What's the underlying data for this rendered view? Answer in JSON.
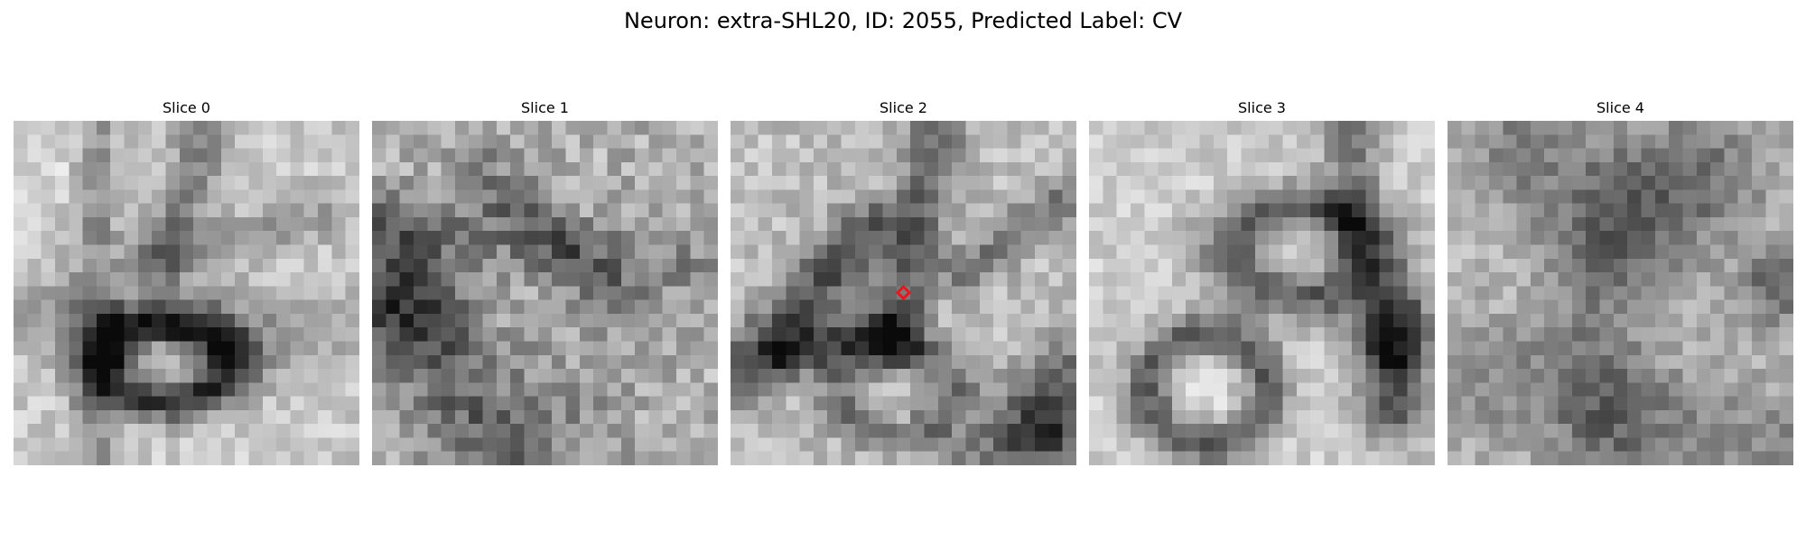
{
  "figure": {
    "title": "Neuron: extra-SHL20, ID: 2055, Predicted Label: CV"
  },
  "panels": [
    {
      "title": "Slice 0",
      "description": "grayscale EM patch with dark ring-shaped vesicle at lower center and dark membrane lines above"
    },
    {
      "title": "Slice 1",
      "description": "noisy grayscale EM patch with diffuse dark diagonal membranes"
    },
    {
      "title": "Slice 2",
      "description": "grayscale EM patch with dark diagonal membranes and a red target marker at center"
    },
    {
      "title": "Slice 3",
      "description": "grayscale EM patch with a ring-shaped vesicle at lower left and dark oval at right"
    },
    {
      "title": "Slice 4",
      "description": "grayscale EM patch with blurred dark regions"
    }
  ],
  "marker": {
    "panel": 2,
    "color": "#e8151b",
    "shape": "diamond"
  }
}
